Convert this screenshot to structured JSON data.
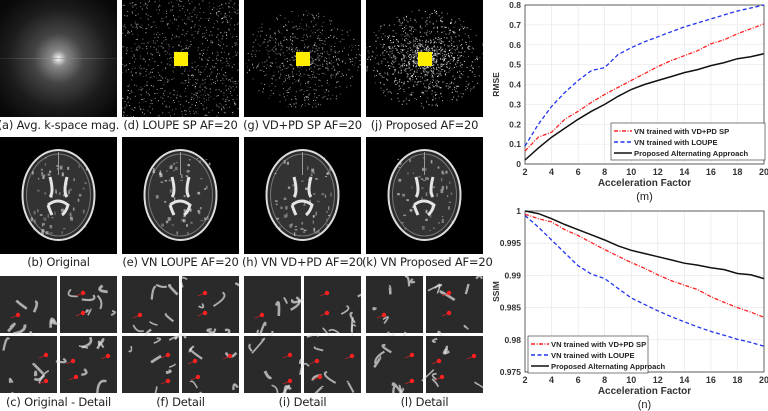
{
  "captions": {
    "a": "(a) Avg. k-space mag.",
    "d": "(d) LOUPE SP AF=20",
    "g": "(g) VD+PD SP AF=20",
    "j": "(j) Proposed AF=20",
    "b": "(b) Original",
    "e": "(e) VN LOUPE AF=20",
    "h": "(h) VN VD+PD AF=20",
    "k": "(k) VN Proposed AF=20",
    "c": "(c) Original - Detail",
    "f": "(f) Detail",
    "i": "(i) Detail",
    "l": "(l) Detail",
    "m": "(m)",
    "n": "(n)"
  },
  "colors": {
    "vdpd": "#ff2020",
    "loupe": "#2233ee",
    "proposed": "#111111",
    "mask_center": "#ffee00",
    "marker": "#ff2020"
  },
  "chart_data": [
    {
      "type": "line",
      "id": "m",
      "title": "",
      "xlabel": "Acceleration Factor",
      "ylabel": "RMSE",
      "xlim": [
        2,
        20
      ],
      "ylim": [
        0,
        0.8
      ],
      "xticks": [
        "2",
        "4",
        "6",
        "8",
        "10",
        "12",
        "14",
        "16",
        "18",
        "20"
      ],
      "yticks": [
        "0",
        "0.1",
        "0.2",
        "0.3",
        "0.4",
        "0.5",
        "0.6",
        "0.7",
        "0.8"
      ],
      "grid": true,
      "legend_position": "lower right",
      "x": [
        2,
        3,
        4,
        5,
        6,
        7,
        8,
        9,
        10,
        11,
        12,
        13,
        14,
        15,
        16,
        17,
        18,
        19,
        20
      ],
      "series": [
        {
          "name": "VN trained with VD+PD SP",
          "style": "dash-dot",
          "color": "#ff2020",
          "values": [
            0.065,
            0.135,
            0.16,
            0.225,
            0.265,
            0.31,
            0.35,
            0.385,
            0.42,
            0.455,
            0.49,
            0.52,
            0.545,
            0.57,
            0.605,
            0.625,
            0.655,
            0.68,
            0.705
          ]
        },
        {
          "name": "VN trained with LOUPE",
          "style": "dashed",
          "color": "#2233ee",
          "values": [
            0.09,
            0.2,
            0.29,
            0.36,
            0.42,
            0.47,
            0.485,
            0.55,
            0.585,
            0.615,
            0.64,
            0.665,
            0.69,
            0.71,
            0.73,
            0.75,
            0.77,
            0.785,
            0.8
          ]
        },
        {
          "name": "Proposed Alternating Approach",
          "style": "solid",
          "color": "#111111",
          "values": [
            0.02,
            0.08,
            0.135,
            0.18,
            0.225,
            0.265,
            0.3,
            0.34,
            0.375,
            0.4,
            0.42,
            0.44,
            0.46,
            0.475,
            0.495,
            0.51,
            0.53,
            0.54,
            0.555
          ]
        }
      ]
    },
    {
      "type": "line",
      "id": "n",
      "title": "",
      "xlabel": "Acceleration Factor",
      "ylabel": "SSIM",
      "xlim": [
        2,
        20
      ],
      "ylim": [
        0.975,
        1
      ],
      "xticks": [
        "2",
        "4",
        "6",
        "8",
        "10",
        "12",
        "14",
        "16",
        "18",
        "20"
      ],
      "yticks": [
        "0.975",
        "0.98",
        "0.985",
        "0.99",
        "0.995",
        "1"
      ],
      "grid": true,
      "legend_position": "lower left",
      "x": [
        2,
        3,
        4,
        5,
        6,
        7,
        8,
        9,
        10,
        11,
        12,
        13,
        14,
        15,
        16,
        17,
        18,
        19,
        20
      ],
      "series": [
        {
          "name": "VN trained with VD+PD SP",
          "style": "dash-dot",
          "color": "#ff2020",
          "values": [
            0.9995,
            0.9988,
            0.9983,
            0.9971,
            0.9962,
            0.9951,
            0.994,
            0.993,
            0.992,
            0.9911,
            0.9901,
            0.9892,
            0.9885,
            0.9878,
            0.9867,
            0.9858,
            0.985,
            0.9843,
            0.9835
          ]
        },
        {
          "name": "VN trained with LOUPE",
          "style": "dashed",
          "color": "#2233ee",
          "values": [
            0.9993,
            0.9975,
            0.9955,
            0.9935,
            0.9915,
            0.9902,
            0.9895,
            0.988,
            0.9865,
            0.9855,
            0.9845,
            0.9836,
            0.9828,
            0.982,
            0.9813,
            0.9807,
            0.9801,
            0.9796,
            0.979
          ]
        },
        {
          "name": "Proposed Alternating Approach",
          "style": "solid",
          "color": "#111111",
          "values": [
            1.0,
            0.9996,
            0.9988,
            0.9979,
            0.9971,
            0.9963,
            0.9955,
            0.9946,
            0.9939,
            0.9934,
            0.9929,
            0.9924,
            0.9919,
            0.9916,
            0.9912,
            0.9909,
            0.9903,
            0.9901,
            0.9895
          ]
        }
      ]
    }
  ]
}
